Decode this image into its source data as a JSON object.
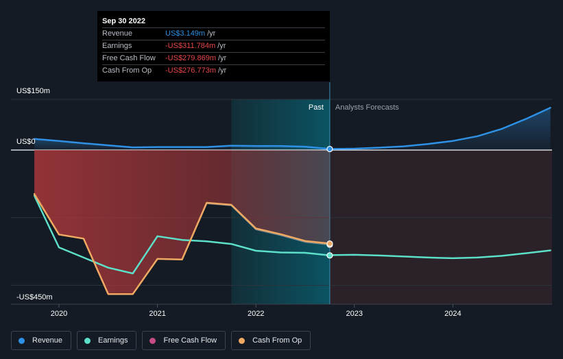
{
  "chart_data": {
    "type": "line",
    "xlim": [
      2019.62,
      2024.99
    ],
    "ylim": [
      -500,
      150
    ],
    "y_axis_labels": [
      {
        "value": 150,
        "label": "US$150m"
      },
      {
        "value": 0,
        "label": "US$0"
      },
      {
        "value": -450,
        "label": "-US$450m"
      }
    ],
    "gridlines": [
      150,
      0,
      -200,
      -400
    ],
    "x_ticks": [
      {
        "value": 2020,
        "label": "2020"
      },
      {
        "value": 2021,
        "label": "2021"
      },
      {
        "value": 2022,
        "label": "2022"
      },
      {
        "value": 2023,
        "label": "2023"
      },
      {
        "value": 2024,
        "label": "2024"
      }
    ],
    "past_label": "Past",
    "forecast_label": "Analysts Forecasts",
    "divider_x": 2022.75,
    "highlight_start_x": 2021.75,
    "series": [
      {
        "name": "Revenue",
        "color": "#2e91e5",
        "x": [
          2019.75,
          2020.0,
          2020.25,
          2020.5,
          2020.75,
          2021.0,
          2021.25,
          2021.5,
          2021.75,
          2022.0,
          2022.25,
          2022.5,
          2022.75
        ],
        "values": [
          33,
          27,
          20,
          14,
          8,
          9,
          9,
          9,
          13,
          12,
          12,
          10,
          3.149
        ]
      },
      {
        "name": "Revenue forecast",
        "color": "#2e91e5",
        "x": [
          2022.75,
          2023.0,
          2023.25,
          2023.5,
          2023.75,
          2024.0,
          2024.25,
          2024.5,
          2024.75,
          2024.99
        ],
        "values": [
          3,
          4,
          7,
          11,
          18,
          27,
          41,
          63,
          93,
          125
        ]
      },
      {
        "name": "Earnings",
        "color": "#5de0c9",
        "x": [
          2019.75,
          2020.0,
          2020.25,
          2020.5,
          2020.75,
          2021.0,
          2021.25,
          2021.5,
          2021.75,
          2022.0,
          2022.25,
          2022.5,
          2022.75
        ],
        "values": [
          -135,
          -288,
          -318,
          -348,
          -365,
          -255,
          -266,
          -270,
          -278,
          -298,
          -303,
          -304,
          -311.784
        ]
      },
      {
        "name": "Earnings forecast",
        "color": "#5de0c9",
        "x": [
          2022.75,
          2023.0,
          2023.25,
          2023.5,
          2023.75,
          2024.0,
          2024.25,
          2024.5,
          2024.75,
          2024.99
        ],
        "values": [
          -311,
          -310,
          -312,
          -315,
          -318,
          -320,
          -318,
          -313,
          -305,
          -297
        ]
      },
      {
        "name": "Free Cash Flow",
        "color": "#c44d88",
        "x": [
          2019.75,
          2020.0,
          2020.25,
          2020.5,
          2020.75,
          2021.0,
          2021.25,
          2021.5,
          2021.75,
          2022.0,
          2022.25,
          2022.5,
          2022.75
        ],
        "values": [
          -132,
          -250,
          -262,
          -426,
          -426,
          -322,
          -324,
          -158,
          -164,
          -235,
          -252,
          -272,
          -279.869
        ]
      },
      {
        "name": "Cash From Op",
        "color": "#f0a962",
        "x": [
          2019.75,
          2020.0,
          2020.25,
          2020.5,
          2020.75,
          2021.0,
          2021.25,
          2021.5,
          2021.75,
          2022.0,
          2022.25,
          2022.5,
          2022.75
        ],
        "values": [
          -130,
          -250,
          -262,
          -426,
          -426,
          -322,
          -324,
          -156,
          -162,
          -232,
          -249,
          -269,
          -276.773
        ]
      }
    ]
  },
  "tooltip": {
    "date": "Sep 30 2022",
    "unit": "/yr",
    "rows": [
      {
        "label": "Revenue",
        "value": "US$3.149m",
        "color": "#2e91e5"
      },
      {
        "label": "Earnings",
        "value": "-US$311.784m",
        "color": "#e8474a"
      },
      {
        "label": "Free Cash Flow",
        "value": "-US$279.869m",
        "color": "#e8474a"
      },
      {
        "label": "Cash From Op",
        "value": "-US$276.773m",
        "color": "#e8474a"
      }
    ]
  },
  "legend": [
    {
      "label": "Revenue",
      "color": "#2e91e5"
    },
    {
      "label": "Earnings",
      "color": "#5de0c9"
    },
    {
      "label": "Free Cash Flow",
      "color": "#c44d88"
    },
    {
      "label": "Cash From Op",
      "color": "#f0a962"
    }
  ]
}
